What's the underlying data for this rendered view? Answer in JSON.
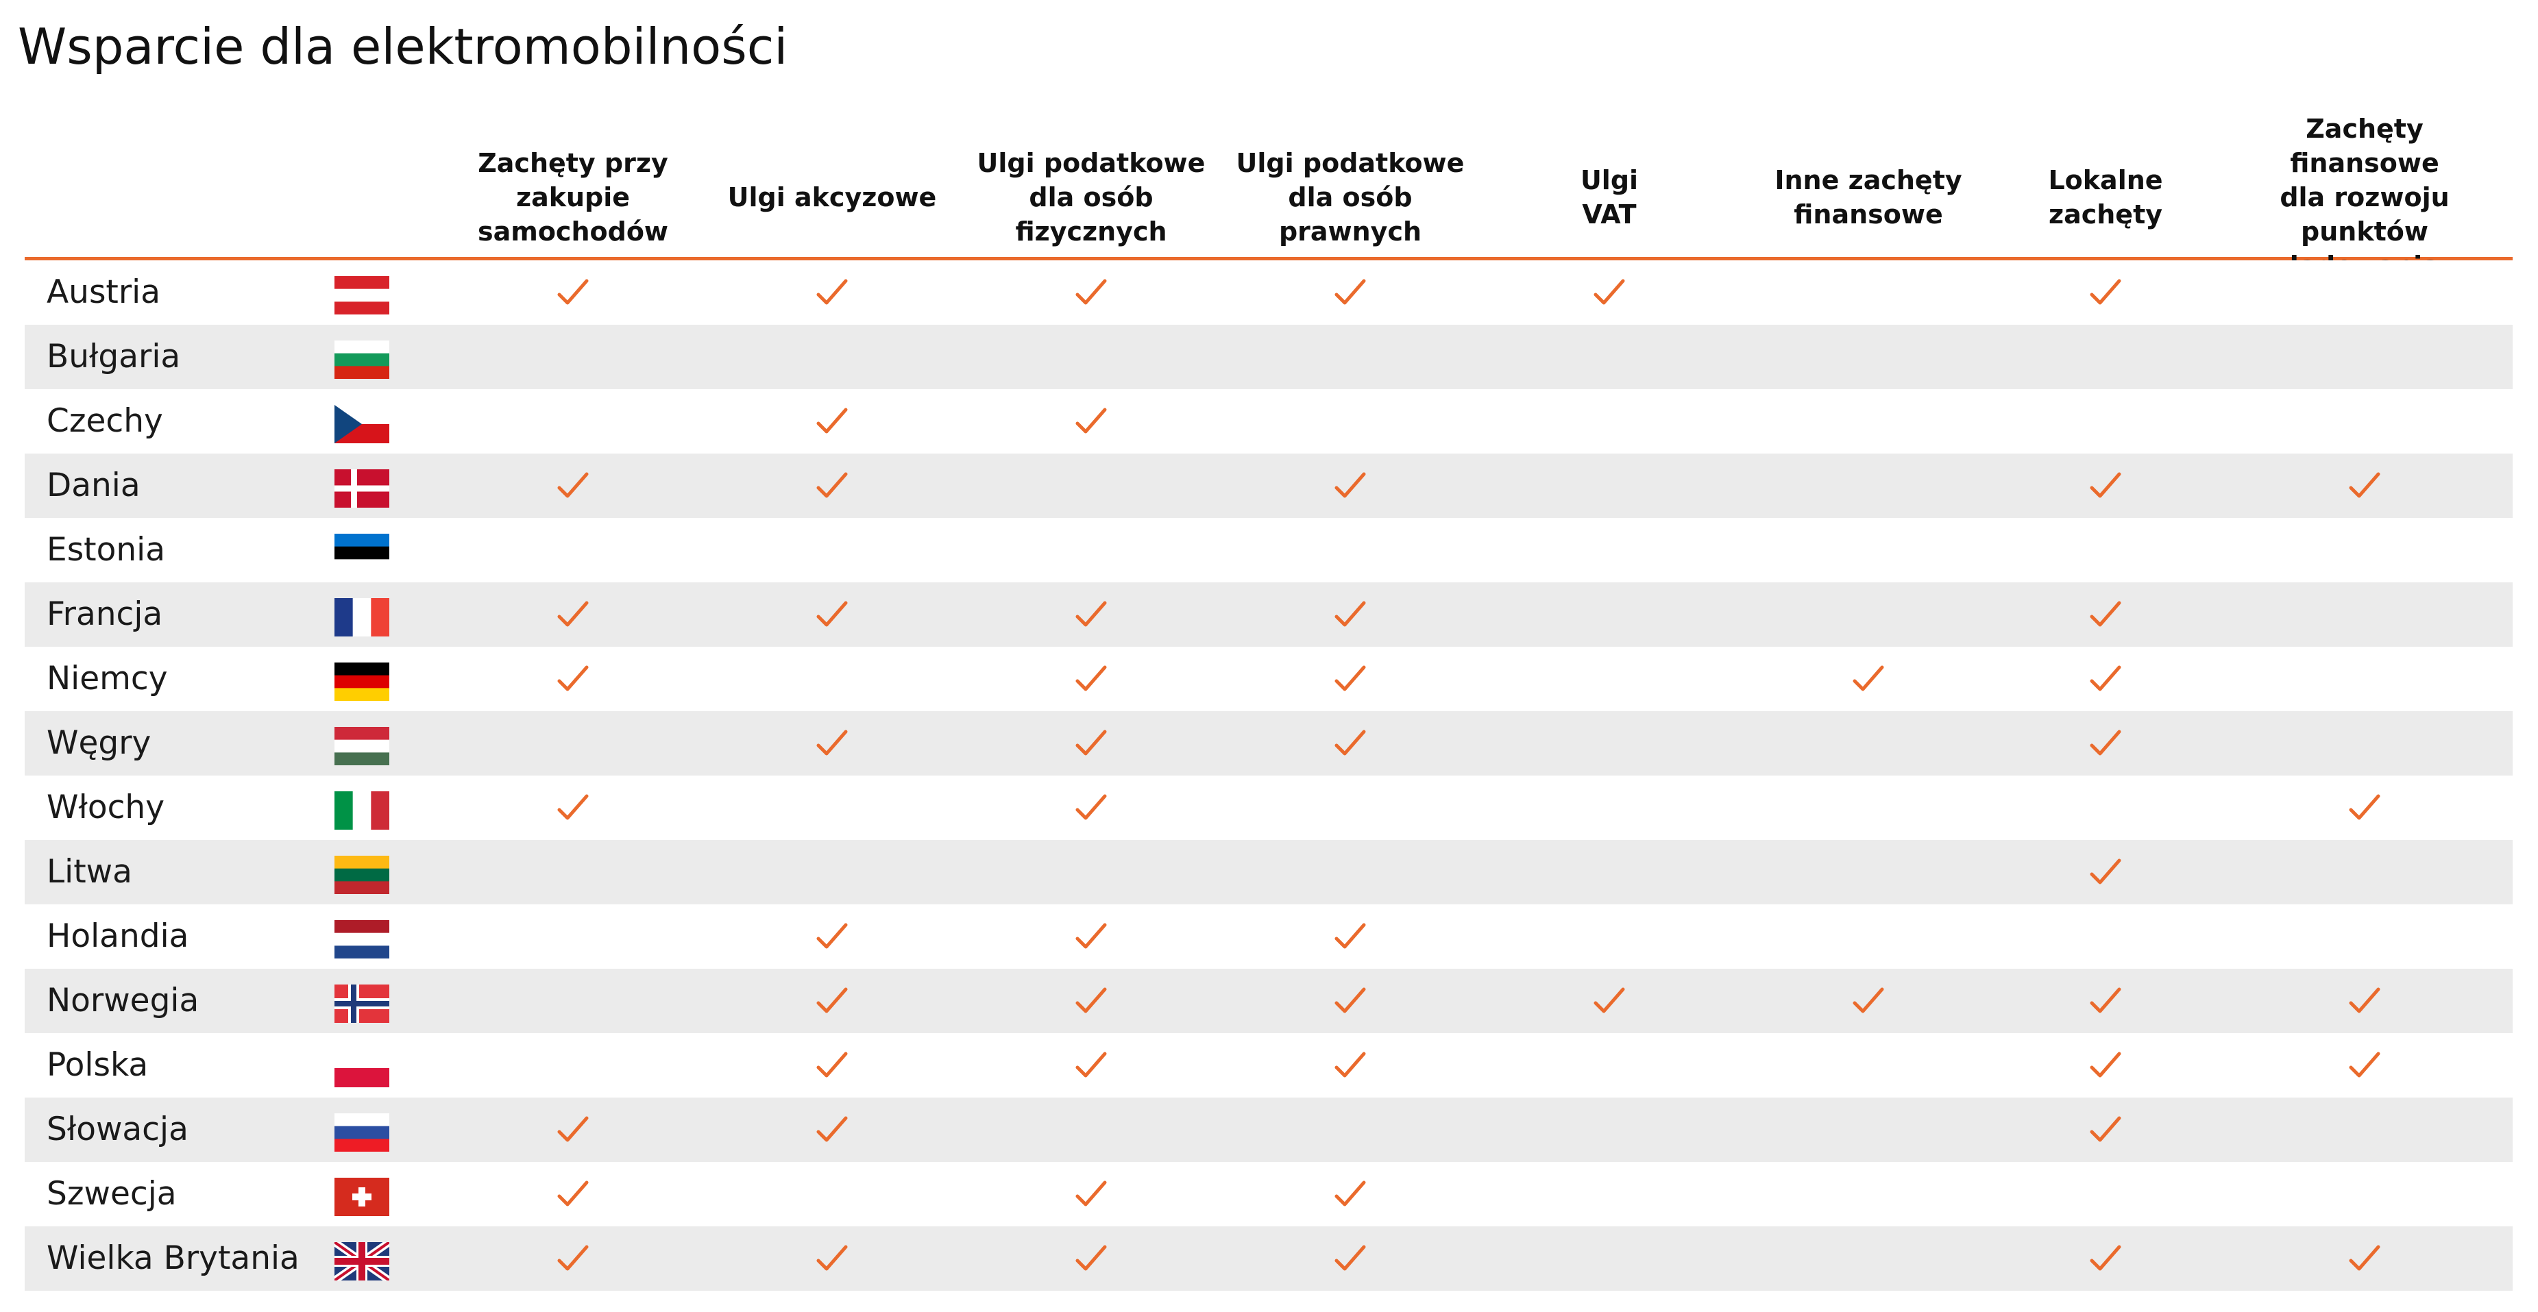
{
  "title": "Wsparcie dla elektromobilności",
  "colors": {
    "accent": "#ea6a2c",
    "row_alt": "#ebebeb",
    "text": "#111111"
  },
  "columns": [
    {
      "lines": [
        "Zachęty przy",
        "zakupie",
        "samochodów"
      ]
    },
    {
      "lines": [
        "Ulgi akcyzowe"
      ]
    },
    {
      "lines": [
        "Ulgi podatkowe",
        "dla osób",
        "fizycznych"
      ]
    },
    {
      "lines": [
        "Ulgi podatkowe",
        "dla osób",
        "prawnych"
      ]
    },
    {
      "lines": [
        "Ulgi",
        "VAT"
      ]
    },
    {
      "lines": [
        "Inne zachęty",
        "finansowe"
      ]
    },
    {
      "lines": [
        "Lokalne",
        "zachęty"
      ]
    },
    {
      "lines": [
        "Zachęty finansowe",
        "dla rozwoju",
        "punktów ładowania"
      ]
    }
  ],
  "rows": [
    {
      "country": "Austria",
      "flag": "austria-flag-icon",
      "checks": [
        true,
        true,
        true,
        true,
        true,
        false,
        true,
        false
      ]
    },
    {
      "country": "Bułgaria",
      "flag": "bulgaria-flag-icon",
      "checks": [
        false,
        false,
        false,
        false,
        false,
        false,
        false,
        false
      ]
    },
    {
      "country": "Czechy",
      "flag": "czechia-flag-icon",
      "checks": [
        false,
        true,
        true,
        false,
        false,
        false,
        false,
        false
      ]
    },
    {
      "country": "Dania",
      "flag": "denmark-flag-icon",
      "checks": [
        true,
        true,
        false,
        true,
        false,
        false,
        true,
        true
      ]
    },
    {
      "country": "Estonia",
      "flag": "estonia-flag-icon",
      "checks": [
        false,
        false,
        false,
        false,
        false,
        false,
        false,
        false
      ]
    },
    {
      "country": "Francja",
      "flag": "france-flag-icon",
      "checks": [
        true,
        true,
        true,
        true,
        false,
        false,
        true,
        false
      ]
    },
    {
      "country": "Niemcy",
      "flag": "germany-flag-icon",
      "checks": [
        true,
        false,
        true,
        true,
        false,
        true,
        true,
        false
      ]
    },
    {
      "country": "Węgry",
      "flag": "hungary-flag-icon",
      "checks": [
        false,
        true,
        true,
        true,
        false,
        false,
        true,
        false
      ]
    },
    {
      "country": "Włochy",
      "flag": "italy-flag-icon",
      "checks": [
        true,
        false,
        true,
        false,
        false,
        false,
        false,
        true
      ]
    },
    {
      "country": "Litwa",
      "flag": "lithuania-flag-icon",
      "checks": [
        false,
        false,
        false,
        false,
        false,
        false,
        true,
        false
      ]
    },
    {
      "country": "Holandia",
      "flag": "netherlands-flag-icon",
      "checks": [
        false,
        true,
        true,
        true,
        false,
        false,
        false,
        false
      ]
    },
    {
      "country": "Norwegia",
      "flag": "norway-flag-icon",
      "checks": [
        false,
        true,
        true,
        true,
        true,
        true,
        true,
        true
      ]
    },
    {
      "country": "Polska",
      "flag": "poland-flag-icon",
      "checks": [
        false,
        true,
        true,
        true,
        false,
        false,
        true,
        true
      ]
    },
    {
      "country": "Słowacja",
      "flag": "slovakia-flag-icon",
      "checks": [
        true,
        true,
        false,
        false,
        false,
        false,
        true,
        false
      ]
    },
    {
      "country": "Szwecja",
      "flag": "switzerland-flag-icon",
      "checks": [
        true,
        false,
        true,
        true,
        false,
        false,
        false,
        false
      ]
    },
    {
      "country": "Wielka Brytania",
      "flag": "uk-flag-icon",
      "checks": [
        true,
        true,
        true,
        true,
        false,
        false,
        true,
        true
      ]
    }
  ]
}
